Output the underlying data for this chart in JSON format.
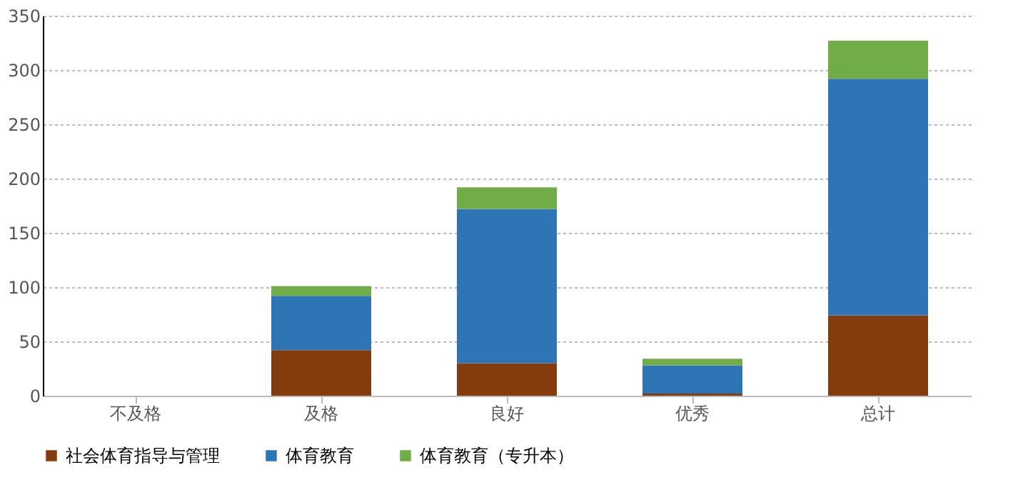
{
  "chart_data": {
    "type": "bar",
    "stacked": true,
    "categories": [
      "不及格",
      "及格",
      "良好",
      "优秀",
      "总计"
    ],
    "series": [
      {
        "name": "社会体育指导与管理",
        "color": "#843c0c",
        "values": [
          0,
          42,
          30,
          2,
          74
        ]
      },
      {
        "name": "体育教育",
        "color": "#2e75b6",
        "values": [
          0,
          50,
          142,
          26,
          218
        ]
      },
      {
        "name": "体育教育（专升本）",
        "color": "#70ad47",
        "values": [
          0,
          9,
          20,
          6,
          35
        ]
      }
    ],
    "ylim": [
      0,
      350
    ],
    "yticks": [
      0,
      50,
      100,
      150,
      200,
      250,
      300,
      350
    ],
    "grid": "y",
    "legend": "bottom"
  }
}
